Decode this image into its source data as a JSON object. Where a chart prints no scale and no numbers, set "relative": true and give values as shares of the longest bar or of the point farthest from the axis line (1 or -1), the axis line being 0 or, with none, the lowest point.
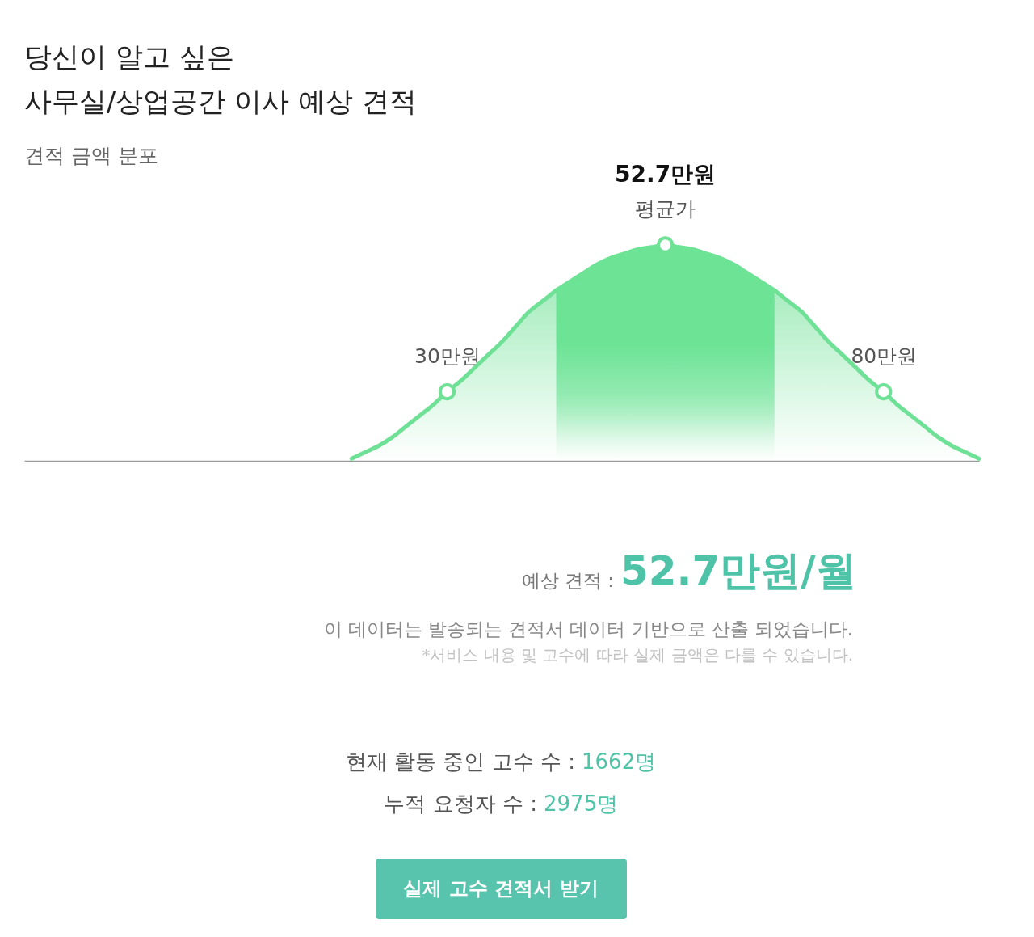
{
  "chart_data": {
    "type": "area",
    "title": "당신이 알고 싶은\n사무실/상업공간 이사 예상 견적",
    "subtitle": "견적 금액 분포",
    "relative": true,
    "categories": [
      null,
      null,
      null,
      null,
      null,
      null,
      null,
      null,
      null,
      null,
      null,
      null,
      null,
      null,
      null,
      null,
      null,
      null,
      null,
      null,
      null,
      null,
      null,
      null,
      null,
      null,
      null,
      null,
      null,
      null,
      null,
      "30만원",
      null,
      null,
      null,
      null,
      null,
      null,
      null,
      null,
      null,
      null,
      null,
      null,
      null,
      null,
      null,
      null,
      null,
      null,
      null,
      null,
      null,
      null,
      null,
      null,
      null,
      null,
      null,
      null,
      null,
      null,
      null,
      "80만원",
      null,
      null,
      null,
      null,
      null,
      null,
      null
    ],
    "series": [
      {
        "color": "#6fe196",
        "values": [
          null,
          null,
          null,
          null,
          null,
          null,
          null,
          null,
          null,
          null,
          null,
          null,
          null,
          null,
          null,
          null,
          null,
          null,
          null,
          null,
          null,
          null,
          null,
          null,
          0.01,
          0.04,
          0.07,
          0.11,
          0.16,
          0.21,
          0.26,
          0.32,
          0.37,
          0.43,
          0.49,
          0.55,
          0.62,
          0.69,
          0.74,
          0.79,
          null,
          null,
          null,
          null,
          null,
          null,
          null,
          null,
          null,
          null,
          null,
          null,
          null,
          null,
          null,
          0.79,
          0.74,
          0.69,
          0.62,
          0.55,
          0.49,
          0.43,
          0.37,
          0.32,
          0.26,
          0.21,
          0.16,
          0.11,
          0.07,
          0.04,
          0.01
        ]
      },
      {
        "color": "#6ce395",
        "values": [
          null,
          null,
          null,
          null,
          null,
          null,
          null,
          null,
          null,
          null,
          null,
          null,
          null,
          null,
          null,
          null,
          null,
          null,
          null,
          null,
          null,
          null,
          null,
          null,
          null,
          null,
          null,
          null,
          null,
          null,
          null,
          null,
          null,
          null,
          null,
          null,
          null,
          null,
          null,
          0.79,
          0.83,
          0.87,
          0.91,
          0.94,
          0.96,
          0.98,
          0.99,
          1,
          0.99,
          0.98,
          0.96,
          0.94,
          0.91,
          0.87,
          0.83,
          0.79,
          null,
          null,
          null,
          null,
          null,
          null,
          null,
          null,
          null,
          null,
          null,
          null,
          null,
          null,
          null
        ]
      },
      {
        "type": "scatter",
        "color": "#6fe196",
        "marker": "circle",
        "values": [
          null,
          null,
          null,
          null,
          null,
          null,
          null,
          null,
          null,
          null,
          null,
          null,
          null,
          null,
          null,
          null,
          null,
          null,
          null,
          null,
          null,
          null,
          null,
          null,
          null,
          null,
          null,
          null,
          null,
          null,
          null,
          0.32,
          null,
          null,
          null,
          null,
          null,
          null,
          null,
          null,
          null,
          null,
          null,
          null,
          null,
          null,
          null,
          1,
          null,
          null,
          null,
          null,
          null,
          null,
          null,
          null,
          null,
          null,
          null,
          null,
          null,
          null,
          null,
          0.32,
          null,
          null,
          null,
          null,
          null,
          null,
          null
        ]
      }
    ],
    "annotations": [
      "52.7만원",
      "평균가",
      "예상 견적 :",
      "52.7만원/월",
      "이 데이터는 발송되는 견적서 데이터 기반으로 산출 되었습니다.",
      "*서비스 내용 및 고수에 따라 실제 금액은 다를 수 있습니다.",
      "현재 활동 중인 고수 수 :",
      "1662명",
      "누적 요청자 수 :",
      "2975명",
      "실제 고수 견적서 받기"
    ]
  }
}
